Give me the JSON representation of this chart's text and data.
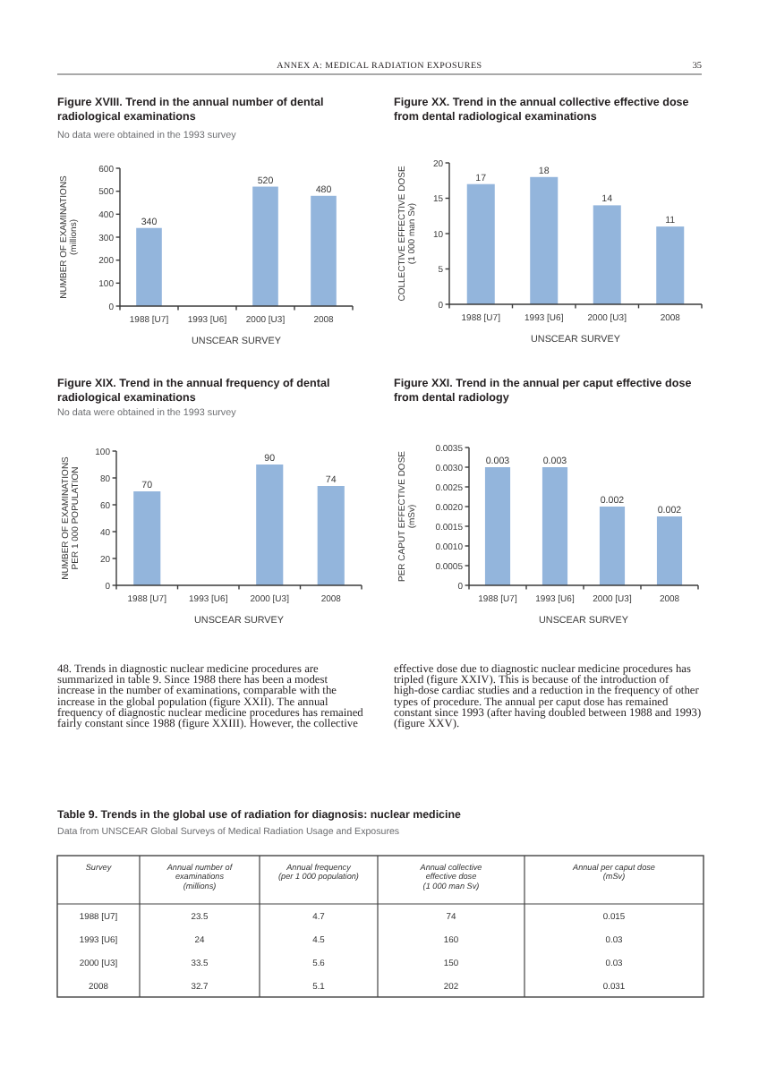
{
  "chart_data": [
    {
      "type": "other",
      "title": "ANNEX A: MEDICAL RADIATION EXPOSURES",
      "annotations": [
        "35"
      ]
    },
    {
      "type": "bar",
      "title": "Figure XVIII. Trend in the annual number of dental radiological examinations",
      "subtitle": "No data were obtained in the 1993 survey",
      "categories": [
        "1988 [U7]",
        "1993 [U6]",
        "2000 [U3]",
        "2008"
      ],
      "values": [
        340,
        null,
        520,
        480
      ],
      "color": "#93b5dc",
      "ylim": [
        0,
        600
      ],
      "yticks": [
        0,
        100,
        200,
        300,
        400,
        500,
        600
      ],
      "ylabel": "NUMBER OF EXAMINATIONS\n(millions)",
      "xlabel": "UNSCEAR SURVEY",
      "data_labels": true
    },
    {
      "type": "bar",
      "title": "Figure XIX. Trend in the annual frequency of dental radiological examinations",
      "subtitle": "No data were obtained in the 1993 survey",
      "categories": [
        "1988 [U7]",
        "1993 [U6]",
        "2000 [U3]",
        "2008"
      ],
      "values": [
        70,
        null,
        90,
        74
      ],
      "color": "#93b5dc",
      "ylim": [
        0,
        100
      ],
      "yticks": [
        0,
        20,
        40,
        60,
        80,
        100
      ],
      "ylabel": "NUMBER OF EXAMINATIONS\nPER 1 000 POPULATION",
      "xlabel": "UNSCEAR SURVEY",
      "data_labels": true
    },
    {
      "type": "bar",
      "title": "Figure XX. Trend in the annual collective effective dose from dental radiological examinations",
      "categories": [
        "1988 [U7]",
        "1993 [U6]",
        "2000 [U3]",
        "2008"
      ],
      "values": [
        17,
        18,
        14,
        11
      ],
      "color": "#93b5dc",
      "ylim": [
        0,
        20
      ],
      "yticks": [
        0,
        5,
        10,
        15,
        20
      ],
      "ylabel": "COLLECTIVE EFFECTIVE DOSE\n(1 000 man Sv)",
      "xlabel": "UNSCEAR SURVEY",
      "data_labels": true
    },
    {
      "type": "bar",
      "title": "Figure XXI. Trend in the annual per caput effective dose from dental radiology",
      "categories": [
        "1988 [U7]",
        "1993 [U6]",
        "2000 [U3]",
        "2008"
      ],
      "values": [
        0.003,
        0.003,
        0.002,
        0.00175
      ],
      "value_labels": [
        "0.003",
        "0.003",
        "0.002",
        "0.002"
      ],
      "color": "#93b5dc",
      "ylim": [
        0,
        0.0035
      ],
      "yticks": [
        0,
        0.0005,
        {
          "value": 0.001,
          "label": "0.0010"
        },
        0.0015,
        {
          "value": 0.002,
          "label": "0.0020"
        },
        0.0025,
        {
          "value": 0.003,
          "label": "0.0030"
        },
        0.0035
      ],
      "ylabel": "PER CAPUT EFFECTIVE DOSE\n(mSv)",
      "xlabel": "UNSCEAR SURVEY"
    },
    {
      "type": "other",
      "annotations": [
        "48. Trends in diagnostic nuclear medicine procedures are summarized in table 9. Since 1988 there has been a modest increase in the number of examinations, comparable with the increase in the global population (figure XXII). The annual frequency of diagnostic nuclear medicine procedures has remained fairly constant since 1988 (figure XXIII). However, the collective effective dose due to diagnostic nuclear medicine procedures has tripled (figure XXIV). This is because of the introduction of high-dose cardiac studies and a reduction in the frequency of other types of procedure. The annual per caput dose has remained constant since 1993 (after having doubled between 1988 and 1993) (figure XXV)."
      ]
    },
    {
      "type": "heatmap",
      "title": "Table 9. Trends in the global use of radiation for diagnosis: nuclear medicine",
      "subtitle": "Data from UNSCEAR Global Surveys of Medical Radiation Usage and Exposures",
      "ylabel": "Survey",
      "categories": [
        "Annual number of\nexaminations\n(millions)",
        "Annual frequency\n(per 1 000 population)",
        "Annual collective\neffective dose\n(1 000 man Sv)",
        "Annual per caput dose\n(mSv)"
      ],
      "y_categories": [
        "1988 [U7]",
        "1993 [U6]",
        "2000 [U3]",
        "2008"
      ],
      "cells": [
        [
          23.5,
          4.7,
          74,
          0.015
        ],
        [
          24,
          4.5,
          160,
          0.03
        ],
        [
          33.5,
          5.6,
          150,
          0.03
        ],
        [
          32.7,
          5.1,
          202,
          0.031
        ]
      ],
      "data_labels": true
    }
  ]
}
